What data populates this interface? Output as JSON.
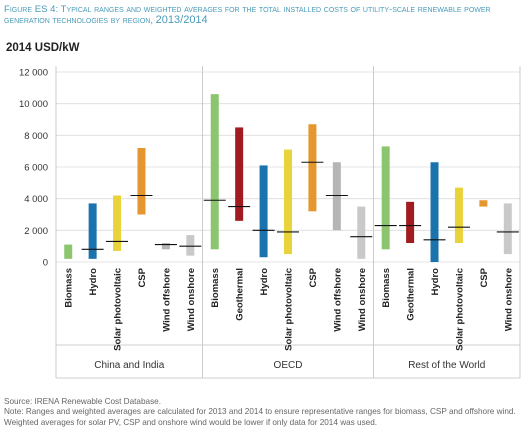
{
  "figure": {
    "label": "Figure ES 4:",
    "title": "Typical ranges and weighted averages for the total installed costs of utility-scale renewable power generation technologies by region,",
    "years": "2013/2014"
  },
  "unit_label": "2014 USD/kW",
  "source_text": "Source: IRENA Renewable Cost Database.",
  "note_text": "Note: Ranges and weighted averages are calculated for 2013 and 2014 to ensure representative ranges for biomass, CSP and offshore wind. Weighted averages for solar PV, CSP and onshore wind would be lower if only data for 2014 was used.",
  "chart_data": {
    "type": "bar",
    "subtype": "floating-range-with-average",
    "ylim": [
      0,
      12000
    ],
    "yticks": [
      0,
      2000,
      4000,
      6000,
      8000,
      10000,
      12000
    ],
    "ytick_labels": [
      "0",
      "2 000",
      "4 000",
      "6 000",
      "8 000",
      "10 000",
      "12 000"
    ],
    "grid": true,
    "colors": {
      "Biomass": "#8cc56f",
      "Geothermal": "#a01c20",
      "Hydro": "#1b73ae",
      "Solar photovoltaic": "#e8d33b",
      "CSP": "#e5962e",
      "Wind offshore": "#b5b5b5",
      "Wind onshore": "#c9c9c9"
    },
    "regions": [
      {
        "name": "China and India",
        "items": [
          {
            "tech": "Biomass",
            "min": 200,
            "max": 1100,
            "avg": null
          },
          {
            "tech": "Hydro",
            "min": 200,
            "max": 3700,
            "avg": 800
          },
          {
            "tech": "Solar photovoltaic",
            "min": 700,
            "max": 4200,
            "avg": 1300
          },
          {
            "tech": "CSP",
            "min": 3000,
            "max": 7200,
            "avg": 4200
          },
          {
            "tech": "Wind offshore",
            "min": 800,
            "max": 1200,
            "avg": 1100
          },
          {
            "tech": "Wind onshore",
            "min": 400,
            "max": 1700,
            "avg": 1000
          }
        ]
      },
      {
        "name": "OECD",
        "items": [
          {
            "tech": "Biomass",
            "min": 800,
            "max": 10600,
            "avg": 3900
          },
          {
            "tech": "Geothermal",
            "min": 2600,
            "max": 8500,
            "avg": 3500
          },
          {
            "tech": "Hydro",
            "min": 300,
            "max": 6100,
            "avg": 2000
          },
          {
            "tech": "Solar photovoltaic",
            "min": 500,
            "max": 7100,
            "avg": 1900
          },
          {
            "tech": "CSP",
            "min": 3200,
            "max": 8700,
            "avg": 6300
          },
          {
            "tech": "Wind offshore",
            "min": 2000,
            "max": 6300,
            "avg": 4200
          },
          {
            "tech": "Wind onshore",
            "min": 200,
            "max": 3500,
            "avg": 1600
          }
        ]
      },
      {
        "name": "Rest of the World",
        "items": [
          {
            "tech": "Biomass",
            "min": 800,
            "max": 7300,
            "avg": 2300
          },
          {
            "tech": "Geothermal",
            "min": 1200,
            "max": 3800,
            "avg": 2300
          },
          {
            "tech": "Hydro",
            "min": 0,
            "max": 6300,
            "avg": 1400
          },
          {
            "tech": "Solar photovoltaic",
            "min": 1200,
            "max": 4700,
            "avg": 2200
          },
          {
            "tech": "CSP",
            "min": 3500,
            "max": 3900,
            "avg": null
          },
          {
            "tech": "Wind onshore",
            "min": 500,
            "max": 3700,
            "avg": 1900
          }
        ]
      }
    ]
  }
}
